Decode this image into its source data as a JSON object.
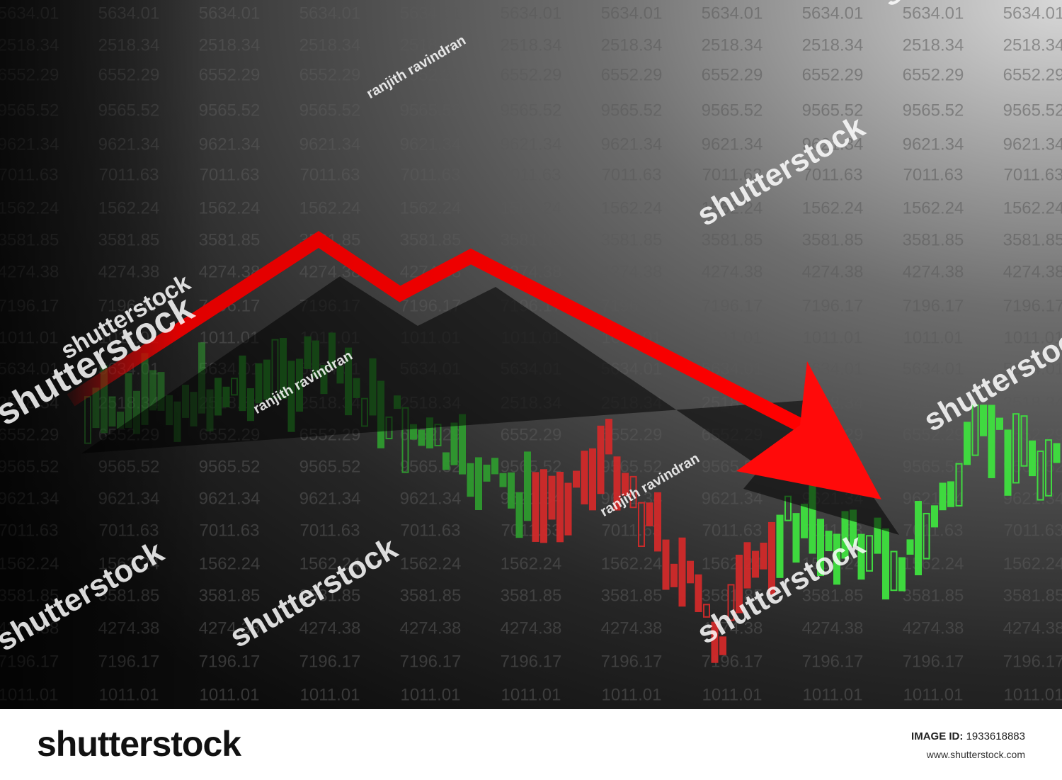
{
  "background_numbers": [
    "5634.01",
    "2518.34",
    "6552.29",
    "9565.52",
    "9621.34",
    "7011.63",
    "1562.24",
    "3581.85",
    "4274.38",
    "7196.17",
    "1011.01"
  ],
  "watermark": {
    "brand": "shutterstock",
    "author": "ranjith ravindran"
  },
  "footer": {
    "logo": "shutterstock",
    "image_id_label": "IMAGE ID:",
    "image_id": "1933618883",
    "site": "www.shutterstock.com"
  }
}
